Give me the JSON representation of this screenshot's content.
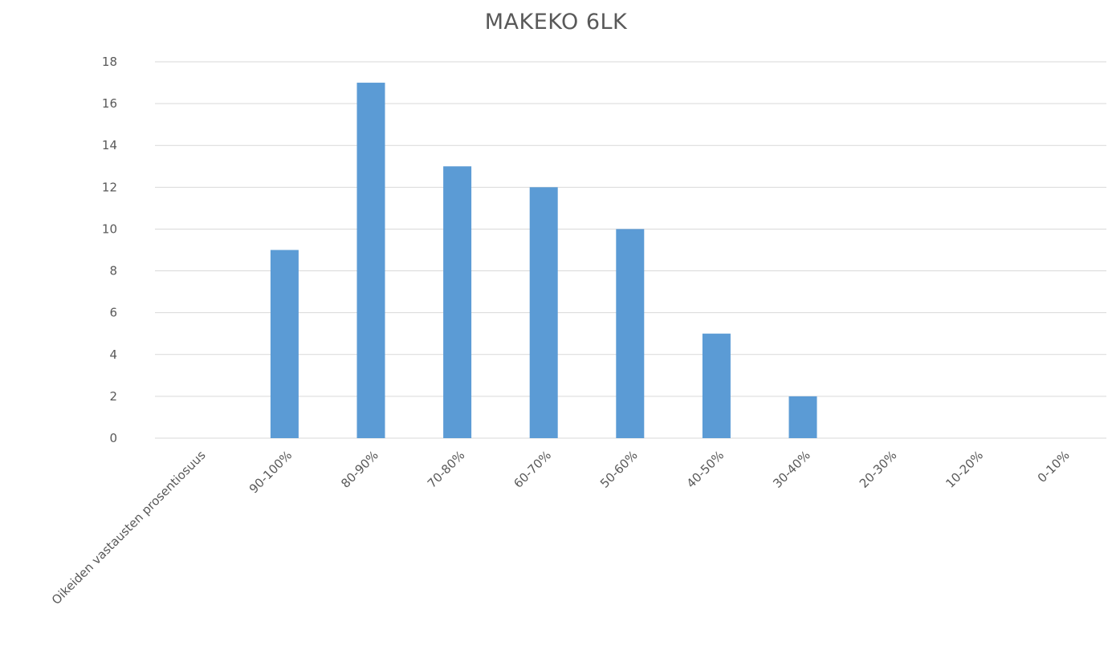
{
  "chart_data": {
    "type": "bar",
    "title": "MAKEKO 6LK",
    "categories": [
      "Oikeiden vastausten prosentiosuus",
      "90-100%",
      "80-90%",
      "70-80%",
      "60-70%",
      "50-60%",
      "40-50%",
      "30-40%",
      "20-30%",
      "10-20%",
      "0-10%"
    ],
    "values": [
      0,
      9,
      17,
      13,
      12,
      10,
      5,
      2,
      0,
      0,
      0
    ],
    "ylim": [
      0,
      18
    ],
    "yticks": [
      0,
      2,
      4,
      6,
      8,
      10,
      12,
      14,
      16,
      18
    ],
    "grid": true,
    "legend": "none",
    "bar_color": "#5b9bd5"
  }
}
